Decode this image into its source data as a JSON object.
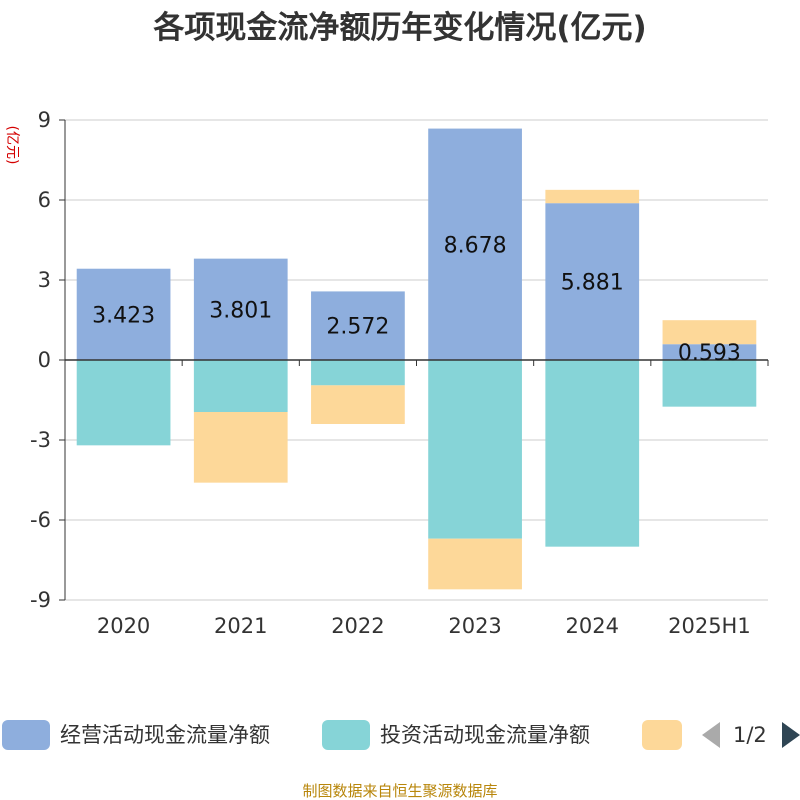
{
  "chart_data": {
    "type": "bar",
    "stacked": true,
    "title": "各项现金流净额历年变化情况(亿元)",
    "ylabel": "(亿元)",
    "xlabel": "",
    "categories": [
      "2020",
      "2021",
      "2022",
      "2023",
      "2024",
      "2025H1"
    ],
    "ylim": [
      -9,
      9
    ],
    "yticks": [
      "9",
      "6",
      "3",
      "0",
      "-3",
      "-6",
      "-9"
    ],
    "ytick_values": [
      9,
      6,
      3,
      0,
      -3,
      -6,
      -9
    ],
    "grid": true,
    "legend_position": "bottom",
    "series": [
      {
        "name": "经营活动现金流量净额",
        "color": "#8eaedd",
        "values": [
          3.423,
          3.801,
          2.572,
          8.678,
          5.881,
          0.593
        ]
      },
      {
        "name": "投资活动现金流量净额",
        "color": "#86d4d7",
        "values": [
          -3.2,
          -1.95,
          -0.95,
          -6.7,
          -7.0,
          -1.75
        ]
      },
      {
        "color": "#fdd899",
        "values": [
          0.0,
          -2.65,
          -1.45,
          -1.9,
          0.5,
          0.9
        ]
      }
    ],
    "data_labels": [
      "3.423",
      "3.801",
      "2.572",
      "8.678",
      "5.881",
      "0.593"
    ]
  },
  "legend": {
    "items": [
      "经营活动现金流量净额",
      "投资活动现金流量净额",
      ""
    ],
    "pager": "1/2"
  },
  "footer": "制图数据来自恒生聚源数据库"
}
